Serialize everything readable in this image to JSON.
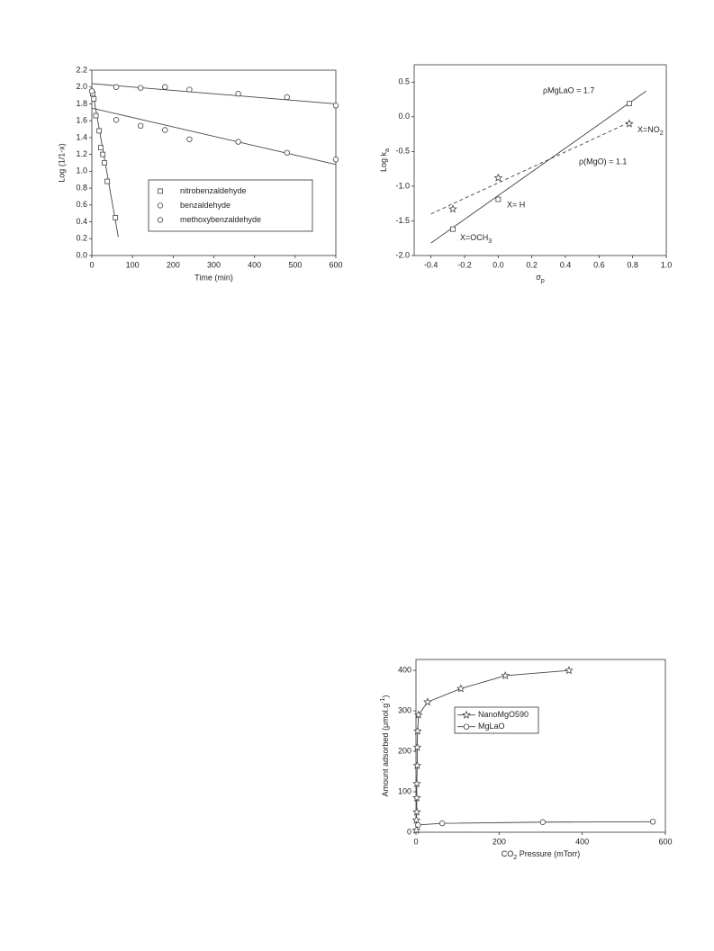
{
  "chart_data": [
    {
      "type": "scatter",
      "xlabel": "Time (min)",
      "ylabel": "Log (1/1-x)",
      "xlim": [
        0,
        600
      ],
      "xticks": [
        0,
        100,
        200,
        300,
        400,
        500,
        600
      ],
      "ylim": [
        0,
        2.2
      ],
      "yticks": [
        {
          "value": 0,
          "label": "0.0"
        },
        0.2,
        0.4,
        0.6,
        0.8,
        {
          "value": 1,
          "label": "1.0"
        },
        1.2,
        1.4,
        1.6,
        1.8,
        {
          "value": 2,
          "label": "2.0"
        },
        2.2
      ],
      "series": [
        {
          "name": "nitrobenzaldehyde",
          "marker": "square",
          "color": "#444",
          "x": [
            2,
            5,
            10,
            18,
            22,
            27,
            31,
            38,
            58
          ],
          "values": [
            1.92,
            1.86,
            1.66,
            1.48,
            1.28,
            1.2,
            1.1,
            0.88,
            0.45
          ],
          "fit": {
            "x": [
              0,
              65
            ],
            "y": [
              2.0,
              0.22
            ]
          }
        },
        {
          "name": "benzaldehyde",
          "marker": "circle",
          "color": "#444",
          "x": [
            0,
            60,
            120,
            180,
            240,
            360,
            480,
            600
          ],
          "values": [
            1.95,
            2.0,
            1.99,
            2.0,
            1.97,
            1.92,
            1.88,
            1.78
          ],
          "fit": {
            "x": [
              0,
              600
            ],
            "y": [
              2.04,
              1.8
            ]
          }
        },
        {
          "name": "methoxybenzaldehyde",
          "marker": "circle",
          "color": "#444",
          "x": [
            60,
            120,
            180,
            240,
            360,
            480,
            600
          ],
          "values": [
            1.61,
            1.54,
            1.49,
            1.38,
            1.35,
            1.22,
            1.14
          ],
          "fit": {
            "x": [
              0,
              600
            ],
            "y": [
              1.75,
              1.08
            ]
          }
        }
      ]
    },
    {
      "type": "scatter",
      "xlabel": [
        "σ",
        "p"
      ],
      "ylabel": [
        "Log k",
        "a"
      ],
      "xlim": [
        -0.5,
        1.0
      ],
      "xticks": [
        -0.4,
        -0.2,
        {
          "value": 0,
          "label": "0.0"
        },
        0.2,
        0.4,
        0.6,
        0.8,
        {
          "value": 1,
          "label": "1.0"
        }
      ],
      "ylim": [
        -2.0,
        0.75
      ],
      "yticks": [
        {
          "value": -2,
          "label": "-2.0"
        },
        -1.5,
        {
          "value": -1,
          "label": "-1.0"
        },
        -0.5,
        {
          "value": 0,
          "label": "0.0"
        },
        0.5
      ],
      "series": [
        {
          "marker": "square",
          "color": "#444",
          "x": [
            -0.27,
            0,
            0.78
          ],
          "values": [
            -1.62,
            -1.19,
            0.19
          ],
          "fit": {
            "x": [
              -0.4,
              0.88
            ],
            "y": [
              -1.82,
              0.37
            ]
          },
          "dash": false
        },
        {
          "marker": "star",
          "color": "#444",
          "x": [
            -0.27,
            0,
            0.78
          ],
          "values": [
            -1.33,
            -0.88,
            -0.1
          ],
          "fit": {
            "x": [
              -0.4,
              0.78
            ],
            "y": [
              -1.4,
              -0.08
            ]
          },
          "dash": true
        }
      ],
      "annotations": [
        "ρMgLaO = 1.7",
        "ρ(MgO) = 1.1",
        [
          "X=NO",
          "2"
        ],
        "X= H",
        [
          "X=OCH",
          "3"
        ]
      ]
    },
    {
      "type": "line",
      "xlabel": [
        "CO",
        "2",
        " Pressure (mTorr)"
      ],
      "ylabel": [
        "Amount adsorbed (μmol.g",
        "-1",
        ")"
      ],
      "xlim": [
        0,
        600
      ],
      "xticks": [
        0,
        200,
        400,
        600
      ],
      "ylim": [
        0,
        427
      ],
      "yticks": [
        0,
        100,
        200,
        300,
        400
      ],
      "series": [
        {
          "name": "NanoMgO590",
          "marker": "star",
          "color": "#444",
          "x": [
            1,
            1,
            2,
            2,
            2,
            3,
            3,
            4,
            6,
            28,
            108,
            215,
            368
          ],
          "values": [
            5,
            30,
            50,
            85,
            120,
            165,
            210,
            250,
            290,
            322,
            355,
            387,
            400
          ]
        },
        {
          "name": "MgLaO",
          "marker": "circle",
          "color": "#444",
          "x": [
            5,
            63,
            305,
            570
          ],
          "values": [
            18,
            22,
            25,
            26
          ]
        }
      ]
    }
  ]
}
